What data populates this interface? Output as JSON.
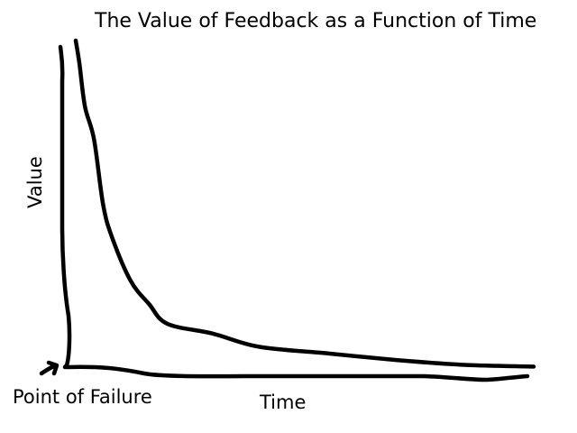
{
  "chart_data": {
    "type": "line",
    "title": "The Value of Feedback as a Function of Time",
    "xlabel": "Time",
    "ylabel": "Value",
    "annotations": [
      {
        "text": "Point of Failure",
        "points_to": "origin"
      }
    ],
    "grid": false,
    "legend": "none",
    "ticks": "none",
    "axis_numbers_shown": false,
    "series": [
      {
        "values_note": "no numeric scale printed; values are relative (0-100)",
        "x": [
          0,
          0.8,
          2,
          4,
          6,
          8,
          12,
          16,
          20,
          30,
          40,
          55,
          70,
          85,
          100
        ],
        "y": [
          100,
          93,
          80,
          70,
          50,
          40,
          27,
          20,
          14,
          11,
          7,
          5,
          3,
          1.5,
          1
        ]
      }
    ]
  },
  "colors": {
    "ink": "#000000",
    "background": "#ffffff"
  }
}
